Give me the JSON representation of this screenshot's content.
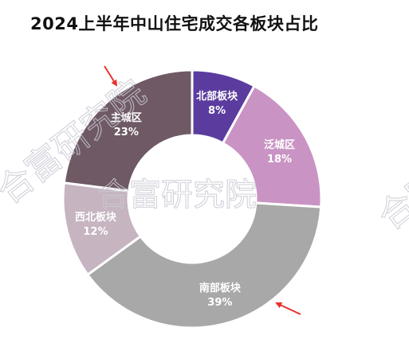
{
  "title": "2024上半年中山住宅成交各板块占比",
  "watermark": "合富研究院",
  "chart_data": {
    "type": "pie",
    "donut": true,
    "title": "2024上半年中山住宅成交各板块占比",
    "slices": [
      {
        "label": "北部板块",
        "value": 8,
        "display": "8%",
        "color": "#5b3c9e"
      },
      {
        "label": "泛城区",
        "value": 18,
        "display": "18%",
        "color": "#c994c4"
      },
      {
        "label": "南部板块",
        "value": 39,
        "display": "39%",
        "color": "#a8a8a8"
      },
      {
        "label": "西北板块",
        "value": 12,
        "display": "12%",
        "color": "#c6b4c1"
      },
      {
        "label": "主城区",
        "value": 23,
        "display": "23%",
        "color": "#6e5965"
      }
    ],
    "legend": "none"
  },
  "annotations": [
    {
      "name": "arrow-annotation-main-city",
      "color": "#e8312a"
    },
    {
      "name": "arrow-annotation-south",
      "color": "#e8312a"
    }
  ]
}
